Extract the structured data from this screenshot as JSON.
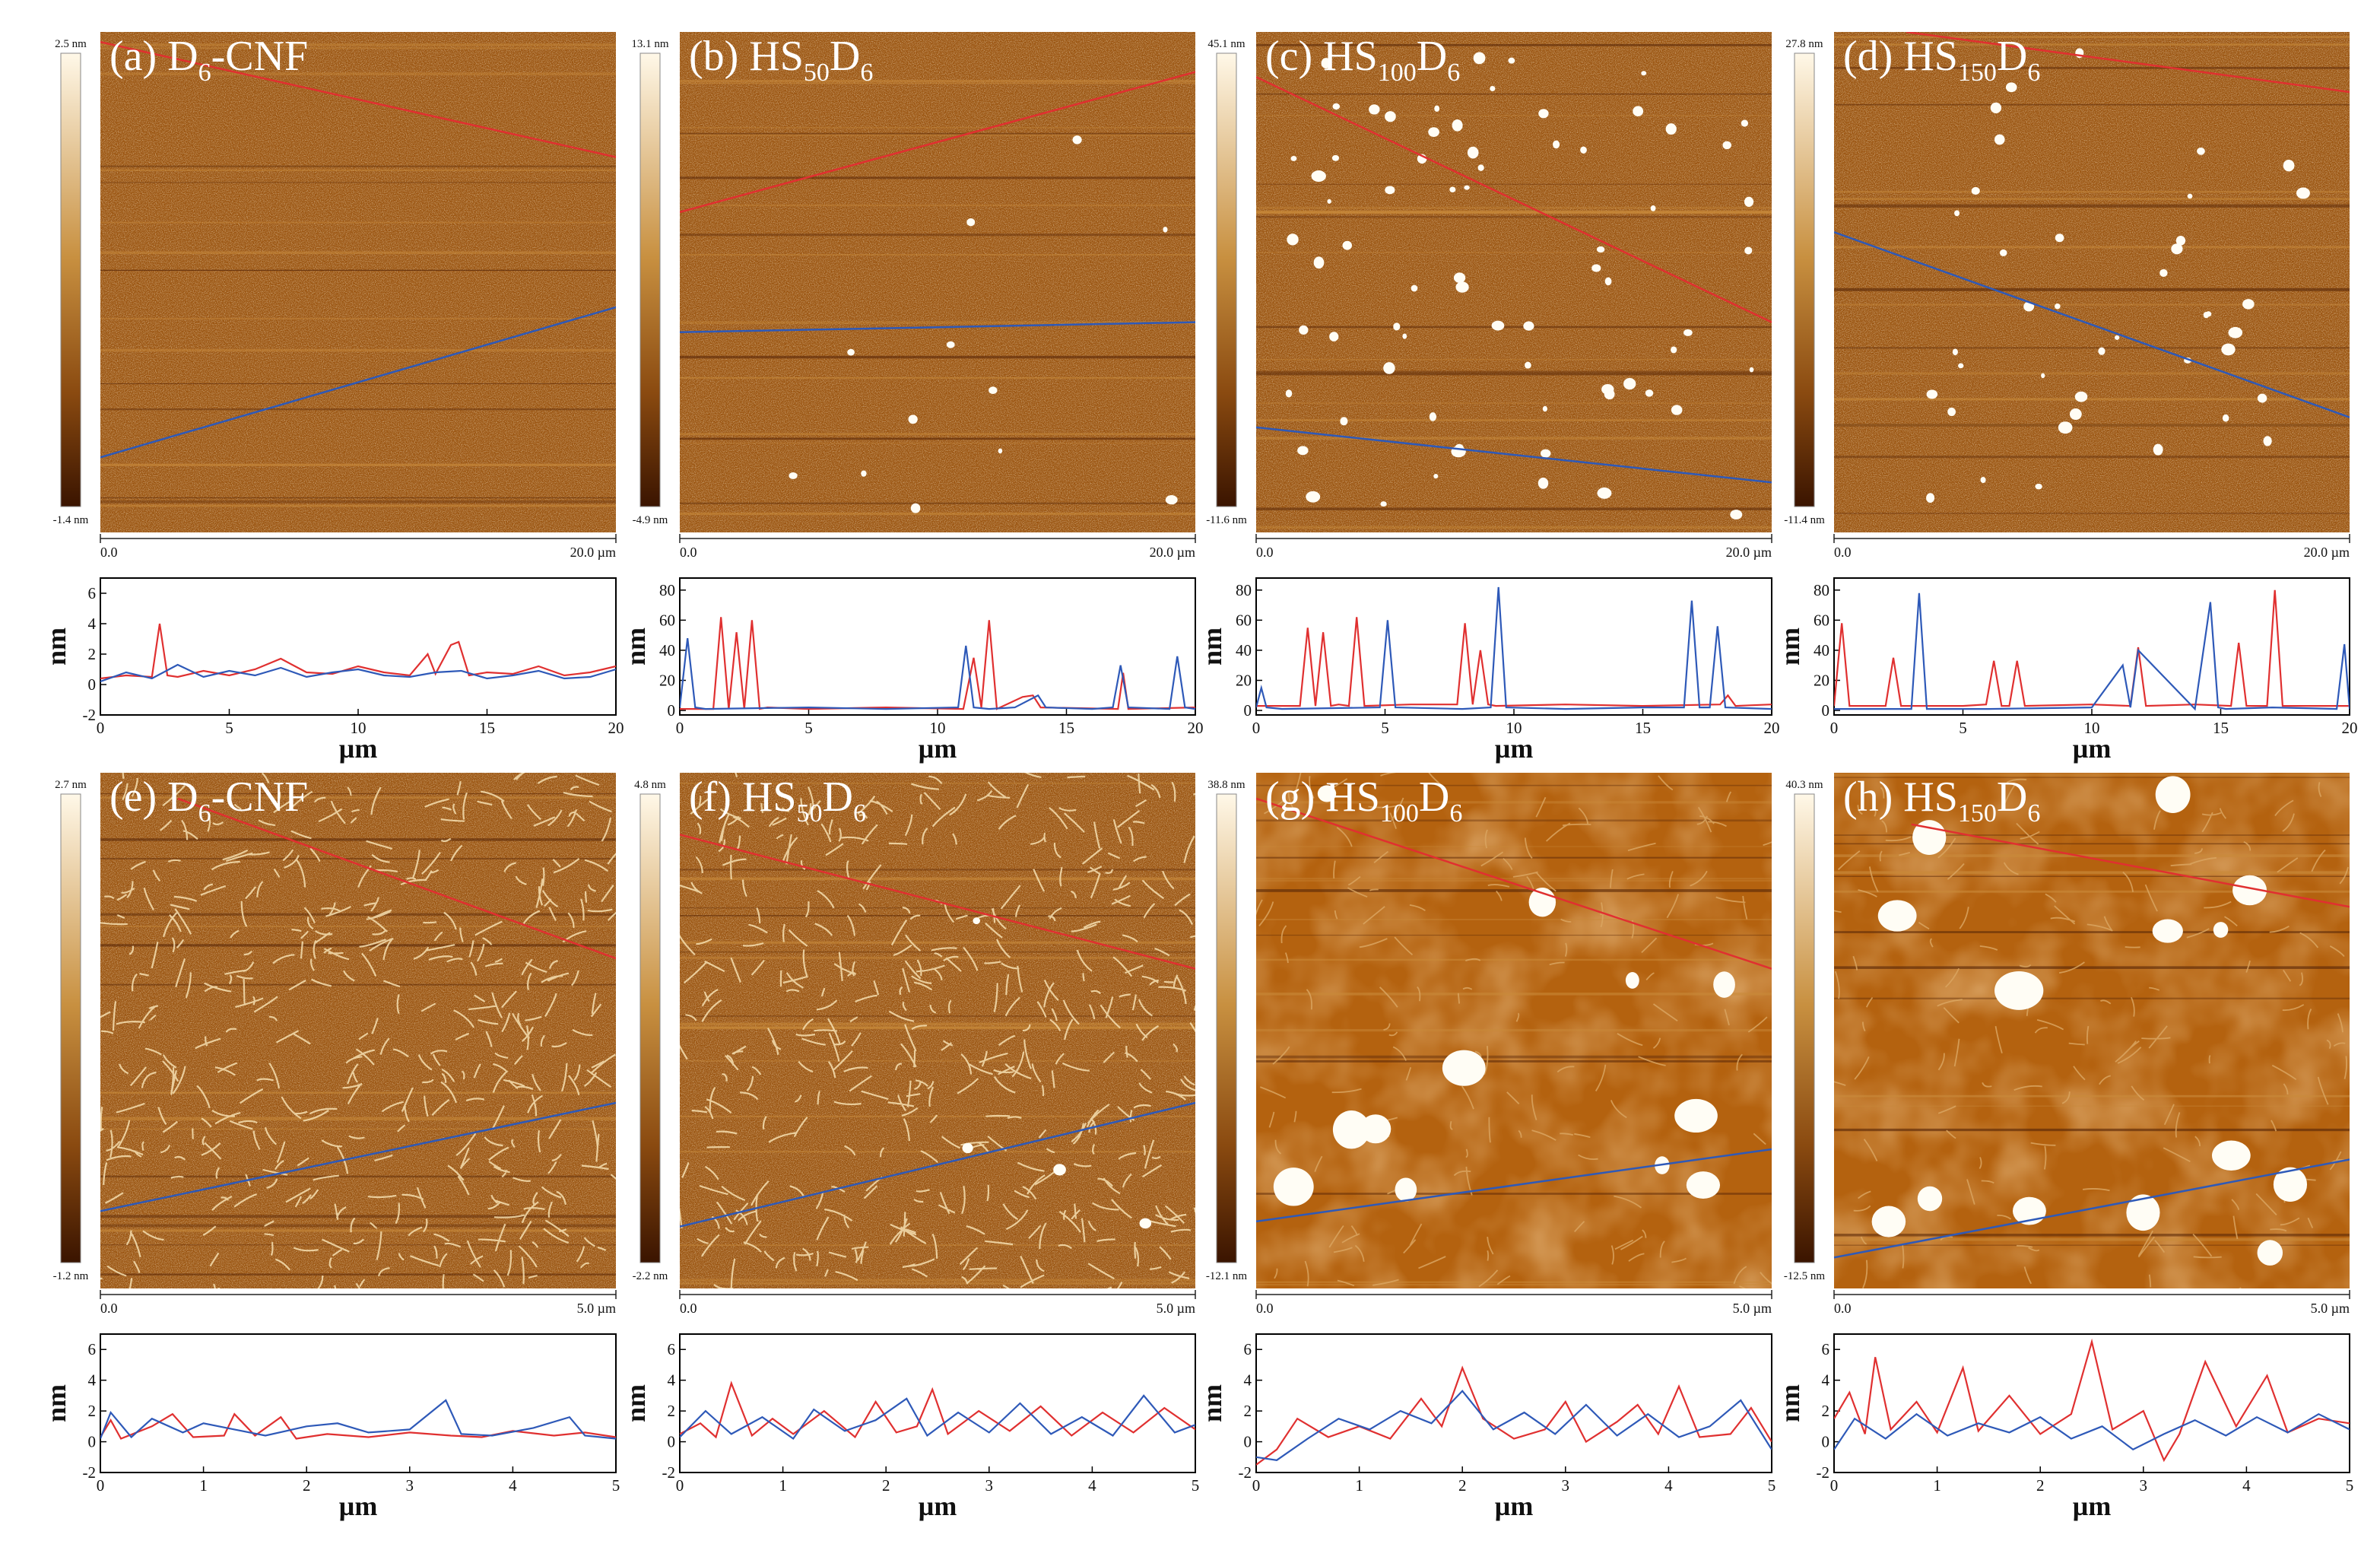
{
  "figure": {
    "panels": [
      {
        "label_prefix": "(a) ",
        "label_main": "D",
        "label_sub": "6",
        "label_tail": "-CNF",
        "label_sub2": "",
        "scale_max": "2.5 nm",
        "scale_min": "-1.4 nm",
        "scan_start": "0.0",
        "scan_end": "20.0 µm",
        "image_style": "fine",
        "particles": 0
      },
      {
        "label_prefix": "(b) ",
        "label_main": "HS",
        "label_sub": "50",
        "label_tail": "D",
        "label_sub2": "6",
        "scale_max": "13.1 nm",
        "scale_min": "-4.9 nm",
        "scan_start": "0.0",
        "scan_end": "20.0 µm",
        "image_style": "fine",
        "particles": 12
      },
      {
        "label_prefix": "(c) ",
        "label_main": "HS",
        "label_sub": "100",
        "label_tail": "D",
        "label_sub2": "6",
        "scale_max": "45.1 nm",
        "scale_min": "-11.6 nm",
        "scan_start": "0.0",
        "scan_end": "20.0 µm",
        "image_style": "fine",
        "particles": 70
      },
      {
        "label_prefix": "(d) ",
        "label_main": "HS",
        "label_sub": "150",
        "label_tail": "D",
        "label_sub2": "6",
        "scale_max": "27.8 nm",
        "scale_min": "-11.4 nm",
        "scan_start": "0.0",
        "scan_end": "20.0 µm",
        "image_style": "fine",
        "particles": 40
      },
      {
        "label_prefix": "(e) ",
        "label_main": "D",
        "label_sub": "6",
        "label_tail": "-CNF",
        "label_sub2": "",
        "scale_max": "2.7 nm",
        "scale_min": "-1.2 nm",
        "scan_start": "0.0",
        "scan_end": "5.0 µm",
        "image_style": "fibers",
        "particles": 0
      },
      {
        "label_prefix": "(f) ",
        "label_main": "HS",
        "label_sub": "50",
        "label_tail": "D",
        "label_sub2": "6",
        "scale_max": "4.8 nm",
        "scale_min": "-2.2 nm",
        "scan_start": "0.0",
        "scan_end": "5.0 µm",
        "image_style": "fibers",
        "particles": 4
      },
      {
        "label_prefix": "(g) ",
        "label_main": "HS",
        "label_sub": "100",
        "label_tail": "D",
        "label_sub2": "6",
        "scale_max": "38.8 nm",
        "scale_min": "-12.1 nm",
        "scan_start": "0.0",
        "scan_end": "5.0 µm",
        "image_style": "smooth",
        "particles": 12
      },
      {
        "label_prefix": "(h) ",
        "label_main": "HS",
        "label_sub": "150",
        "label_tail": "D",
        "label_sub2": "6",
        "scale_max": "40.3 nm",
        "scale_min": "-12.5 nm",
        "scan_start": "0.0",
        "scan_end": "5.0 µm",
        "image_style": "smooth",
        "particles": 14
      }
    ],
    "colors": {
      "afm_dark": "#3a1400",
      "afm_mid": "#a0520a",
      "afm_light": "#fff8e8",
      "red_line": "#e03030",
      "blue_line": "#2e59b8"
    }
  },
  "chart_data": [
    {
      "type": "line",
      "panel": "(a)",
      "xlabel": "µm",
      "ylabel": "nm",
      "xlim": [
        0,
        20
      ],
      "ylim": [
        -2,
        7
      ],
      "xticks": [
        "0",
        "5",
        "10",
        "15",
        "20"
      ],
      "yticks": [
        "-2",
        "0",
        "2",
        "4",
        "6"
      ],
      "series": [
        {
          "color": "#e03030",
          "x": [
            0,
            1,
            2,
            2.3,
            2.6,
            3,
            4,
            5,
            6,
            7,
            8,
            9,
            10,
            11,
            12,
            12.7,
            13,
            13.6,
            13.9,
            14.3,
            15,
            16,
            17,
            18,
            19,
            20
          ],
          "y": [
            0.4,
            0.6,
            0.5,
            4.0,
            0.6,
            0.5,
            0.9,
            0.6,
            1.0,
            1.7,
            0.8,
            0.7,
            1.2,
            0.8,
            0.6,
            2.0,
            0.7,
            2.6,
            2.8,
            0.6,
            0.8,
            0.7,
            1.2,
            0.6,
            0.8,
            1.2
          ]
        },
        {
          "color": "#2e59b8",
          "x": [
            0,
            1,
            2,
            3,
            4,
            5,
            6,
            7,
            8,
            9,
            10,
            11,
            12,
            13,
            14,
            15,
            16,
            17,
            18,
            19,
            20
          ],
          "y": [
            0.2,
            0.8,
            0.4,
            1.3,
            0.5,
            0.9,
            0.6,
            1.1,
            0.5,
            0.8,
            1.0,
            0.6,
            0.5,
            0.8,
            0.9,
            0.4,
            0.6,
            0.9,
            0.4,
            0.5,
            1.0
          ]
        }
      ]
    },
    {
      "type": "line",
      "panel": "(b)",
      "xlabel": "µm",
      "ylabel": "nm",
      "xlim": [
        0,
        20
      ],
      "ylim": [
        -3,
        88
      ],
      "xticks": [
        "0",
        "5",
        "10",
        "15",
        "20"
      ],
      "yticks": [
        "0",
        "20",
        "40",
        "60",
        "80"
      ],
      "series": [
        {
          "color": "#e03030",
          "x": [
            0,
            1.3,
            1.6,
            1.9,
            2.2,
            2.5,
            2.8,
            3.1,
            3.4,
            5,
            8,
            11,
            11.4,
            11.7,
            12.0,
            12.3,
            13.3,
            13.7,
            14,
            17,
            17.2,
            17.4,
            20
          ],
          "y": [
            1,
            1,
            62,
            1,
            52,
            1,
            60,
            1,
            2,
            1,
            2,
            1,
            35,
            2,
            60,
            1,
            9,
            10,
            2,
            1,
            25,
            1,
            2
          ]
        },
        {
          "color": "#2e59b8",
          "x": [
            0,
            0.3,
            0.6,
            1,
            5,
            8,
            10.8,
            11.1,
            11.4,
            12,
            13,
            13.9,
            14.2,
            16,
            16.8,
            17.1,
            17.4,
            19,
            19.3,
            19.6,
            20
          ],
          "y": [
            2,
            48,
            2,
            1,
            2,
            1,
            2,
            43,
            2,
            1,
            2,
            10,
            2,
            1,
            2,
            30,
            2,
            1,
            36,
            2,
            1
          ]
        }
      ]
    },
    {
      "type": "line",
      "panel": "(c)",
      "xlabel": "µm",
      "ylabel": "nm",
      "xlim": [
        0,
        20
      ],
      "ylim": [
        -3,
        88
      ],
      "xticks": [
        "0",
        "5",
        "10",
        "15",
        "20"
      ],
      "yticks": [
        "0",
        "20",
        "40",
        "60",
        "80"
      ],
      "series": [
        {
          "color": "#e03030",
          "x": [
            0,
            1.7,
            2.0,
            2.3,
            2.6,
            2.9,
            3.2,
            3.6,
            3.9,
            4.2,
            6,
            7.8,
            8.1,
            8.4,
            8.7,
            9,
            9.3,
            12,
            15,
            18,
            18.3,
            18.6,
            20
          ],
          "y": [
            3,
            3,
            55,
            3,
            52,
            3,
            4,
            3,
            62,
            3,
            4,
            4,
            58,
            4,
            40,
            4,
            3,
            4,
            3,
            4,
            10,
            3,
            4
          ]
        },
        {
          "color": "#2e59b8",
          "x": [
            0,
            0.2,
            0.4,
            1,
            4.8,
            5.1,
            5.4,
            8,
            9.1,
            9.4,
            9.7,
            12,
            15,
            16.6,
            16.9,
            17.2,
            17.6,
            17.9,
            18.2,
            20
          ],
          "y": [
            2,
            15,
            2,
            1,
            2,
            60,
            2,
            1,
            2,
            82,
            2,
            1,
            2,
            2,
            73,
            2,
            2,
            56,
            2,
            1
          ]
        }
      ]
    },
    {
      "type": "line",
      "panel": "(d)",
      "xlabel": "µm",
      "ylabel": "nm",
      "xlim": [
        0,
        20
      ],
      "ylim": [
        -3,
        88
      ],
      "xticks": [
        "0",
        "5",
        "10",
        "15",
        "20"
      ],
      "yticks": [
        "0",
        "20",
        "40",
        "60",
        "80"
      ],
      "series": [
        {
          "color": "#e03030",
          "x": [
            0,
            0.3,
            0.6,
            1,
            2.0,
            2.3,
            2.6,
            5,
            5.9,
            6.2,
            6.5,
            6.8,
            7.1,
            7.4,
            10,
            11.5,
            11.8,
            12.1,
            14,
            15.4,
            15.7,
            16,
            16.8,
            17.1,
            17.4,
            20
          ],
          "y": [
            3,
            58,
            3,
            3,
            3,
            35,
            3,
            3,
            4,
            33,
            3,
            3,
            33,
            3,
            4,
            3,
            42,
            3,
            4,
            3,
            45,
            3,
            3,
            80,
            3,
            3
          ]
        },
        {
          "color": "#2e59b8",
          "x": [
            0,
            3,
            3.3,
            3.6,
            6,
            10,
            11.2,
            11.5,
            11.8,
            14,
            14.6,
            14.9,
            15.2,
            17,
            19.5,
            19.8,
            20
          ],
          "y": [
            1,
            1,
            78,
            1,
            1,
            2,
            30,
            2,
            40,
            1,
            72,
            2,
            1,
            2,
            1,
            44,
            1
          ]
        }
      ]
    },
    {
      "type": "line",
      "panel": "(e)",
      "xlabel": "µm",
      "ylabel": "nm",
      "xlim": [
        0,
        5
      ],
      "ylim": [
        -2,
        7
      ],
      "xticks": [
        "0",
        "1",
        "2",
        "3",
        "4",
        "5"
      ],
      "yticks": [
        "-2",
        "0",
        "2",
        "4",
        "6"
      ],
      "series": [
        {
          "color": "#e03030",
          "x": [
            0,
            0.1,
            0.2,
            0.5,
            0.7,
            0.9,
            1.2,
            1.3,
            1.5,
            1.75,
            1.9,
            2.2,
            2.6,
            3.0,
            3.4,
            3.7,
            4.0,
            4.4,
            4.7,
            5
          ],
          "y": [
            0.3,
            1.4,
            0.2,
            1.0,
            1.8,
            0.3,
            0.4,
            1.8,
            0.4,
            1.6,
            0.2,
            0.5,
            0.3,
            0.6,
            0.4,
            0.3,
            0.7,
            0.4,
            0.6,
            0.3
          ]
        },
        {
          "color": "#2e59b8",
          "x": [
            0,
            0.1,
            0.3,
            0.5,
            0.8,
            1.0,
            1.3,
            1.6,
            2.0,
            2.3,
            2.6,
            3.0,
            3.35,
            3.5,
            3.8,
            4.2,
            4.55,
            4.7,
            5
          ],
          "y": [
            0.2,
            1.9,
            0.3,
            1.5,
            0.6,
            1.2,
            0.8,
            0.4,
            1.0,
            1.2,
            0.6,
            0.8,
            2.7,
            0.5,
            0.4,
            0.9,
            1.6,
            0.4,
            0.2
          ]
        }
      ]
    },
    {
      "type": "line",
      "panel": "(f)",
      "xlabel": "µm",
      "ylabel": "nm",
      "xlim": [
        0,
        5
      ],
      "ylim": [
        -2,
        7
      ],
      "xticks": [
        "0",
        "1",
        "2",
        "3",
        "4",
        "5"
      ],
      "yticks": [
        "-2",
        "0",
        "2",
        "4",
        "6"
      ],
      "series": [
        {
          "color": "#e03030",
          "x": [
            0,
            0.2,
            0.35,
            0.5,
            0.7,
            0.9,
            1.1,
            1.4,
            1.7,
            1.9,
            2.1,
            2.3,
            2.45,
            2.6,
            2.9,
            3.2,
            3.5,
            3.8,
            4.1,
            4.4,
            4.7,
            5
          ],
          "y": [
            0.5,
            1.2,
            0.3,
            3.8,
            0.4,
            1.5,
            0.5,
            2.0,
            0.3,
            2.6,
            0.6,
            1.0,
            3.4,
            0.5,
            2.0,
            0.7,
            2.3,
            0.4,
            1.9,
            0.6,
            2.2,
            0.8
          ]
        },
        {
          "color": "#2e59b8",
          "x": [
            0,
            0.25,
            0.5,
            0.8,
            1.1,
            1.3,
            1.6,
            1.9,
            2.2,
            2.4,
            2.7,
            3.0,
            3.3,
            3.6,
            3.9,
            4.2,
            4.5,
            4.8,
            5
          ],
          "y": [
            0.3,
            2.0,
            0.5,
            1.6,
            0.2,
            2.1,
            0.7,
            1.4,
            2.8,
            0.4,
            1.9,
            0.6,
            2.5,
            0.5,
            1.6,
            0.4,
            3.0,
            0.6,
            1.1
          ]
        }
      ]
    },
    {
      "type": "line",
      "panel": "(g)",
      "xlabel": "µm",
      "ylabel": "nm",
      "xlim": [
        0,
        5
      ],
      "ylim": [
        -2,
        7
      ],
      "xticks": [
        "0",
        "1",
        "2",
        "3",
        "4",
        "5"
      ],
      "yticks": [
        "-2",
        "0",
        "2",
        "4",
        "6"
      ],
      "series": [
        {
          "color": "#e03030",
          "x": [
            0,
            0.2,
            0.4,
            0.7,
            1.0,
            1.3,
            1.6,
            1.8,
            2.0,
            2.2,
            2.5,
            2.8,
            3.0,
            3.2,
            3.5,
            3.7,
            3.9,
            4.1,
            4.3,
            4.6,
            4.8,
            5
          ],
          "y": [
            -1.5,
            -0.5,
            1.5,
            0.3,
            1.0,
            0.2,
            2.8,
            1.0,
            4.8,
            1.5,
            0.2,
            0.8,
            2.6,
            0.0,
            1.3,
            2.4,
            0.5,
            3.6,
            0.3,
            0.5,
            2.2,
            0.0
          ]
        },
        {
          "color": "#2e59b8",
          "x": [
            0,
            0.2,
            0.5,
            0.8,
            1.1,
            1.4,
            1.7,
            2.0,
            2.3,
            2.6,
            2.9,
            3.2,
            3.5,
            3.8,
            4.1,
            4.4,
            4.7,
            5
          ],
          "y": [
            -1.0,
            -1.2,
            0.2,
            1.5,
            0.8,
            2.0,
            1.2,
            3.3,
            0.8,
            1.9,
            0.5,
            2.4,
            0.4,
            1.8,
            0.3,
            1.0,
            2.7,
            -0.5
          ]
        }
      ]
    },
    {
      "type": "line",
      "panel": "(h)",
      "xlabel": "µm",
      "ylabel": "nm",
      "xlim": [
        0,
        5
      ],
      "ylim": [
        -2,
        7
      ],
      "xticks": [
        "0",
        "1",
        "2",
        "3",
        "4",
        "5"
      ],
      "yticks": [
        "-2",
        "0",
        "2",
        "4",
        "6"
      ],
      "series": [
        {
          "color": "#e03030",
          "x": [
            0,
            0.15,
            0.3,
            0.4,
            0.55,
            0.8,
            1.0,
            1.25,
            1.4,
            1.7,
            2.0,
            2.3,
            2.5,
            2.7,
            3.0,
            3.2,
            3.35,
            3.6,
            3.9,
            4.2,
            4.4,
            4.7,
            5
          ],
          "y": [
            1.5,
            3.2,
            0.5,
            5.5,
            0.8,
            2.6,
            0.6,
            4.8,
            0.7,
            3.0,
            0.5,
            1.8,
            6.5,
            0.8,
            2.0,
            -1.2,
            0.5,
            5.2,
            1.0,
            4.3,
            0.6,
            1.5,
            1.2
          ]
        },
        {
          "color": "#2e59b8",
          "x": [
            0,
            0.2,
            0.5,
            0.8,
            1.1,
            1.4,
            1.7,
            2.0,
            2.3,
            2.6,
            2.9,
            3.2,
            3.5,
            3.8,
            4.1,
            4.4,
            4.7,
            5
          ],
          "y": [
            -0.5,
            1.5,
            0.2,
            1.8,
            0.4,
            1.2,
            0.6,
            1.6,
            0.2,
            1.0,
            -0.5,
            0.5,
            1.4,
            0.4,
            1.6,
            0.6,
            1.8,
            0.8
          ]
        }
      ]
    }
  ]
}
